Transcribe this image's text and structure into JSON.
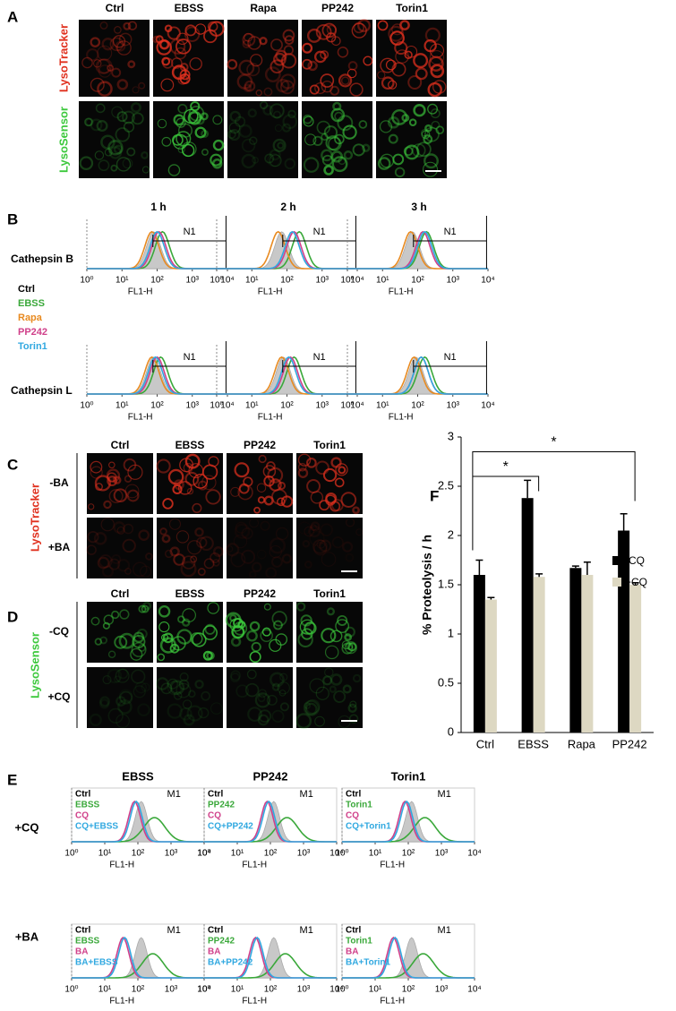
{
  "panel_a": {
    "label": "A",
    "columns": [
      "Ctrl",
      "EBSS",
      "Rapa",
      "PP242",
      "Torin1"
    ],
    "rows": [
      "LysoTracker",
      "LysoSensor"
    ]
  },
  "panel_b": {
    "label": "B",
    "times": [
      "1 h",
      "2 h",
      "3 h"
    ],
    "rows": [
      "Cathepsin B",
      "Cathepsin L"
    ],
    "legend": [
      "Ctrl",
      "EBSS",
      "Rapa",
      "PP242",
      "Torin1"
    ],
    "gate": "N1",
    "xticks": [
      "10⁰",
      "10¹",
      "10²",
      "10³",
      "10⁴"
    ],
    "xlabel": "FL1-H"
  },
  "panel_c": {
    "label": "C",
    "columns": [
      "Ctrl",
      "EBSS",
      "PP242",
      "Torin1"
    ],
    "stain": "LysoTracker",
    "rows": [
      "-BA",
      "+BA"
    ]
  },
  "panel_d": {
    "label": "D",
    "columns": [
      "Ctrl",
      "EBSS",
      "PP242",
      "Torin1"
    ],
    "stain": "LysoSensor",
    "rows": [
      "-CQ",
      "+CQ"
    ]
  },
  "panel_e": {
    "label": "E",
    "columns": [
      {
        "title": "EBSS",
        "legend_cq": [
          "Ctrl",
          "EBSS",
          "CQ",
          "CQ+EBSS"
        ],
        "legend_ba": [
          "Ctrl",
          "EBSS",
          "BA",
          "BA+EBSS"
        ]
      },
      {
        "title": "PP242",
        "legend_cq": [
          "Ctrl",
          "PP242",
          "CQ",
          "CQ+PP242"
        ],
        "legend_ba": [
          "Ctrl",
          "PP242",
          "BA",
          "BA+PP242"
        ]
      },
      {
        "title": "Torin1",
        "legend_cq": [
          "Ctrl",
          "Torin1",
          "CQ",
          "CQ+Torin1"
        ],
        "legend_ba": [
          "Ctrl",
          "Torin1",
          "BA",
          "BA+Torin1"
        ]
      }
    ],
    "rows": [
      "+CQ",
      "+BA"
    ],
    "gate": "M1",
    "xticks": [
      "10⁰",
      "10¹",
      "10²",
      "10³",
      "10⁴"
    ],
    "xlabel": "FL1-H"
  },
  "chart_data": {
    "type": "bar",
    "label": "F",
    "ylabel": "% Proteolysis / h",
    "categories": [
      "Ctrl",
      "EBSS",
      "Rapa",
      "PP242"
    ],
    "series": [
      {
        "name": "-CQ",
        "color": "#000000",
        "values": [
          1.6,
          2.38,
          1.67,
          2.05
        ],
        "errors": [
          0.15,
          0.18,
          0.02,
          0.17
        ]
      },
      {
        "name": "+CQ",
        "color": "#ddd8c2",
        "values": [
          1.35,
          1.58,
          1.6,
          1.5
        ],
        "errors": [
          0.02,
          0.03,
          0.13,
          0.02
        ]
      }
    ],
    "ylim": [
      0,
      3
    ],
    "yticks": [
      0,
      0.5,
      1,
      1.5,
      2,
      2.5,
      3
    ],
    "annotations": [
      "*",
      "*"
    ]
  }
}
